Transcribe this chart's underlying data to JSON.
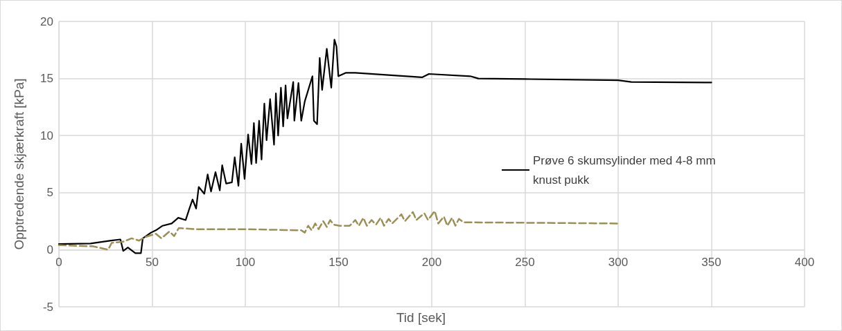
{
  "chart_data": {
    "type": "line",
    "xlabel": "Tid [sek]",
    "ylabel": "Opptredende skjærkraft [kPa]",
    "xlim": [
      0,
      400
    ],
    "xticks": [
      0,
      50,
      100,
      150,
      200,
      250,
      300,
      350,
      400
    ],
    "ylim": [
      -5,
      20
    ],
    "yticks": [
      -5,
      0,
      5,
      10,
      15,
      20
    ],
    "grid": true,
    "legend": "right",
    "marker": "none",
    "series": [
      {
        "name": "Prøve 6 skumsylinder med 4-8 mm  knust pukk",
        "color": "#000000",
        "line_style": "solid",
        "x": [
          0,
          17,
          28,
          33,
          34.5,
          37,
          41,
          44,
          45,
          49.4,
          52,
          55.6,
          60.5,
          64,
          68,
          70,
          71.7,
          73.6,
          75,
          78,
          79.8,
          81.6,
          84,
          86.3,
          87.6,
          89.7,
          92.8,
          94.3,
          96.3,
          97.8,
          99.6,
          101.5,
          103.3,
          104.6,
          105.8,
          107.4,
          108.7,
          110.2,
          111.4,
          113.3,
          115.4,
          116.4,
          117.6,
          119.1,
          120.3,
          121.6,
          122.6,
          125.7,
          126.3,
          128.5,
          130,
          131.9,
          136,
          136.8,
          138.5,
          139.9,
          141.2,
          143.7,
          146.1,
          147.8,
          148.9,
          149.9,
          154,
          159,
          194.8,
          198.5,
          220.7,
          225,
          250,
          300,
          307,
          350
        ],
        "values": [
          0.5,
          0.55,
          0.8,
          0.9,
          -0.1,
          0.2,
          -0.3,
          -0.3,
          1.0,
          1.5,
          1.7,
          2.1,
          2.3,
          2.8,
          2.6,
          3.6,
          4.4,
          3.6,
          5.5,
          4.9,
          6.6,
          5.1,
          6.8,
          5.2,
          7.4,
          5.8,
          5.9,
          8.1,
          5.6,
          9.3,
          6.2,
          10.1,
          7.5,
          11.1,
          7.6,
          11.3,
          7.9,
          12.8,
          9.6,
          13.2,
          9.2,
          13.7,
          10,
          14.2,
          10.8,
          14.4,
          11.5,
          14.7,
          11.3,
          14.6,
          11.3,
          13,
          15.2,
          11.3,
          11,
          16.8,
          14,
          17.6,
          14.2,
          18.4,
          17.8,
          15.2,
          15.5,
          15.5,
          15.1,
          15.4,
          15.2,
          15.0,
          14.95,
          14.85,
          14.7,
          14.65
        ]
      },
      {
        "color": "#9c8f55",
        "line_style": "dashed",
        "x": [
          0,
          18.4,
          26.4,
          28.3,
          34.5,
          39,
          43,
          46,
          52,
          55,
          59.3,
          61.8,
          64.3,
          73,
          100,
          130,
          131.9,
          133.7,
          135.6,
          137.5,
          139.3,
          141.8,
          143.7,
          145.5,
          147.4,
          150.5,
          156,
          159,
          160.9,
          163.3,
          165.2,
          167.7,
          170.1,
          172.6,
          174.4,
          176.9,
          178.8,
          183.7,
          185.6,
          189.9,
          191.7,
          196,
          198,
          201.6,
          203.5,
          206.5,
          208.4,
          210.9,
          212.7,
          214.6,
          217,
          220.7,
          300
        ],
        "values": [
          0.4,
          0.3,
          0,
          0.6,
          0.7,
          1.0,
          0.8,
          1.1,
          1.4,
          1.0,
          1.6,
          1.2,
          1.9,
          1.8,
          1.8,
          1.7,
          1.5,
          2.1,
          1.7,
          2.3,
          1.8,
          2.5,
          2.0,
          2.6,
          2.2,
          2.1,
          2.1,
          2.6,
          2.1,
          2.8,
          2.1,
          2.6,
          2.2,
          2.8,
          2.1,
          2.7,
          2.3,
          3.1,
          2.5,
          3.3,
          2.6,
          3.2,
          2.6,
          3.4,
          2.3,
          2.9,
          2.1,
          2.8,
          2.1,
          2.7,
          2.4,
          2.4,
          2.3
        ]
      }
    ]
  }
}
